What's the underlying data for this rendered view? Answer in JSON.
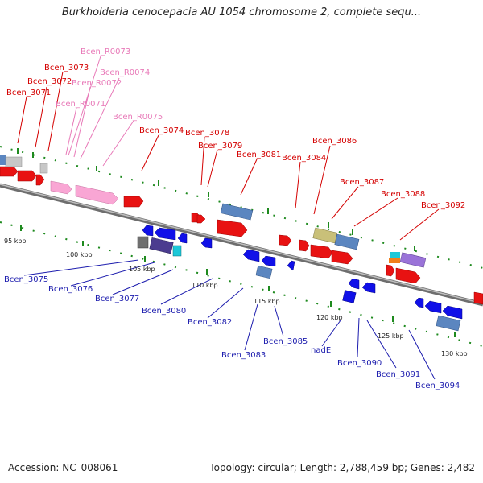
{
  "title": "Burkholderia cenocepacia AU 1054 chromosome 2, complete sequ...",
  "footer": {
    "accession": "Accession: NC_008061",
    "summary": "Topology: circular; Length: 2,788,459 bp; Genes: 2,482"
  },
  "colors": {
    "forward_gene": "#ee1111",
    "reverse_gene": "#1111ee",
    "rna_gene": "#f9a6d4",
    "backbone": "#8a8a8a",
    "tick_green": "#1e8a1e",
    "label_forward": "#d40000",
    "label_rna": "#e879b8",
    "label_reverse": "#1c1cae"
  },
  "kbp_labels": [
    "95 kbp",
    "100 kbp",
    "105 kbp",
    "110 kbp",
    "115 kbp",
    "120 kbp",
    "125 kbp",
    "130 kbp"
  ],
  "forward_labels": [
    "Bcen_3071",
    "Bcen_3072",
    "Bcen_3073",
    "Bcen_3074",
    "Bcen_3078",
    "Bcen_3079",
    "Bcen_3081",
    "Bcen_3084",
    "Bcen_3086",
    "Bcen_3087",
    "Bcen_3088",
    "Bcen_3092"
  ],
  "rna_labels": [
    "Bcen_R0073",
    "Bcen_R0074",
    "Bcen_R0072",
    "Bcen_R0071",
    "Bcen_R0075"
  ],
  "reverse_labels": [
    "Bcen_3075",
    "Bcen_3076",
    "Bcen_3077",
    "Bcen_3080",
    "Bcen_3082",
    "Bcen_3083",
    "Bcen_3085",
    "nadE",
    "Bcen_3090",
    "Bcen_3091",
    "Bcen_3094"
  ]
}
